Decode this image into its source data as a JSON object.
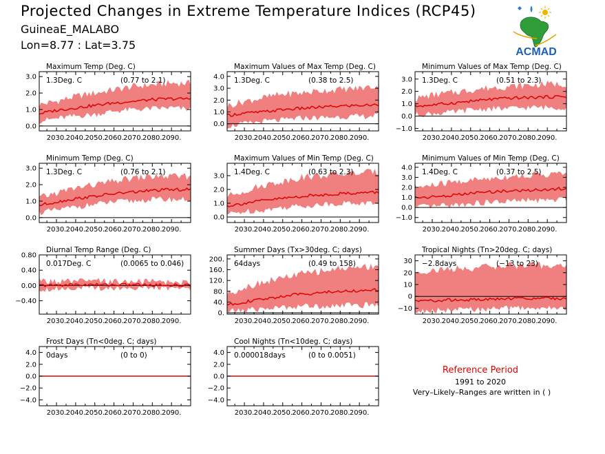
{
  "header": {
    "title": "Projected Changes in Extreme Temperature Indices (RCP45)",
    "location": "GuineaE_MALABO",
    "coordinates": "Lon=8.77 : Lat=3.75"
  },
  "logo": {
    "text": "ACMAD",
    "icon": "africa-map-icon"
  },
  "reference": {
    "title": "Reference Period",
    "years": "1991 to 2020",
    "note": "Very–Likely–Ranges are written in ( )"
  },
  "colors": {
    "band": "#f08080",
    "line": "#e00000",
    "zero": "#000000"
  },
  "chart_data": [
    {
      "type": "area",
      "title": "Maximum Temp (Deg. C)",
      "change": "1.3Deg. C",
      "range": "(0.77 to 2.1)",
      "x_ticks": [
        "2030.",
        "2040.",
        "2050.",
        "2060.",
        "2070.",
        "2080.",
        "2090."
      ],
      "y_ticks": [
        "0.0",
        "1.0",
        "2.0",
        "3.0"
      ],
      "xlim": [
        2021,
        2100
      ],
      "ylim": [
        -0.3,
        3.3
      ],
      "series": [
        {
          "x": [
            2021,
            2030,
            2040,
            2050,
            2060,
            2070,
            2080,
            2090,
            2100
          ],
          "values": [
            0.75,
            0.95,
            1.1,
            1.25,
            1.4,
            1.5,
            1.6,
            1.65,
            1.65
          ],
          "lower": [
            0.3,
            0.45,
            0.6,
            0.7,
            0.9,
            1.0,
            1.05,
            1.1,
            1.0
          ],
          "upper": [
            1.3,
            1.5,
            1.8,
            2.0,
            2.2,
            2.4,
            2.5,
            2.6,
            2.6
          ]
        }
      ]
    },
    {
      "type": "area",
      "title": "Maximum Values of Max Temp (Deg. C)",
      "change": "1.3Deg. C",
      "range": "(0.38 to 2.5)",
      "x_ticks": [
        "2030.",
        "2040.",
        "2050.",
        "2060.",
        "2070.",
        "2080.",
        "2090."
      ],
      "y_ticks": [
        "0.0",
        "1.0",
        "2.0",
        "3.0",
        "4.0"
      ],
      "xlim": [
        2021,
        2100
      ],
      "ylim": [
        -0.6,
        4.4
      ],
      "series": [
        {
          "x": [
            2021,
            2030,
            2040,
            2050,
            2060,
            2070,
            2080,
            2090,
            2100
          ],
          "values": [
            0.7,
            0.9,
            1.0,
            1.2,
            1.3,
            1.4,
            1.5,
            1.55,
            1.6
          ],
          "lower": [
            -0.2,
            0.0,
            0.2,
            0.3,
            0.5,
            0.5,
            0.6,
            0.6,
            0.7
          ],
          "upper": [
            1.5,
            1.9,
            2.2,
            2.5,
            2.6,
            2.8,
            2.9,
            3.0,
            3.2
          ]
        }
      ]
    },
    {
      "type": "area",
      "title": "Minimum Values of Max Temp (Deg. C)",
      "change": "1.3Deg. C",
      "range": "(0.51 to 2.3)",
      "x_ticks": [
        "2030.",
        "2040.",
        "2050.",
        "2060.",
        "2070.",
        "2080.",
        "2090."
      ],
      "y_ticks": [
        "−1.0",
        "0.0",
        "1.0",
        "2.0",
        "3.0"
      ],
      "xlim": [
        2021,
        2100
      ],
      "ylim": [
        -1.2,
        3.6
      ],
      "series": [
        {
          "x": [
            2021,
            2030,
            2040,
            2050,
            2060,
            2070,
            2080,
            2090,
            2100
          ],
          "values": [
            0.8,
            0.9,
            1.05,
            1.2,
            1.35,
            1.45,
            1.5,
            1.55,
            1.6
          ],
          "lower": [
            0.1,
            0.2,
            0.3,
            0.5,
            0.6,
            0.6,
            0.7,
            0.7,
            0.7
          ],
          "upper": [
            1.4,
            1.7,
            1.9,
            2.1,
            2.3,
            2.4,
            2.5,
            2.6,
            2.6
          ]
        }
      ]
    },
    {
      "type": "area",
      "title": "Minimum Temp (Deg. C)",
      "change": "1.3Deg. C",
      "range": "(0.76 to 2.1)",
      "x_ticks": [
        "2030.",
        "2040.",
        "2050.",
        "2060.",
        "2070.",
        "2080.",
        "2090."
      ],
      "y_ticks": [
        "0.0",
        "1.0",
        "2.0",
        "3.0"
      ],
      "xlim": [
        2021,
        2100
      ],
      "ylim": [
        -0.3,
        3.3
      ],
      "series": [
        {
          "x": [
            2021,
            2030,
            2040,
            2050,
            2060,
            2070,
            2080,
            2090,
            2100
          ],
          "values": [
            0.75,
            0.95,
            1.15,
            1.3,
            1.45,
            1.55,
            1.65,
            1.7,
            1.7
          ],
          "lower": [
            0.3,
            0.45,
            0.65,
            0.8,
            0.95,
            1.0,
            1.1,
            1.1,
            1.1
          ],
          "upper": [
            1.2,
            1.5,
            1.8,
            2.0,
            2.2,
            2.4,
            2.5,
            2.5,
            2.5
          ]
        }
      ]
    },
    {
      "type": "area",
      "title": "Maximum Values of Min Temp (Deg. C)",
      "change": "1.4Deg. C",
      "range": "(0.63 to 2.3)",
      "x_ticks": [
        "2030.",
        "2040.",
        "2050.",
        "2060.",
        "2070.",
        "2080.",
        "2090."
      ],
      "y_ticks": [
        "0.0",
        "1.0",
        "2.0",
        "3.0"
      ],
      "xlim": [
        2021,
        2100
      ],
      "ylim": [
        -0.4,
        3.9
      ],
      "series": [
        {
          "x": [
            2021,
            2030,
            2040,
            2050,
            2060,
            2070,
            2080,
            2090,
            2100
          ],
          "values": [
            0.8,
            1.0,
            1.2,
            1.35,
            1.5,
            1.6,
            1.7,
            1.75,
            1.8
          ],
          "lower": [
            0.2,
            0.4,
            0.5,
            0.7,
            0.8,
            0.9,
            1.0,
            1.0,
            1.0
          ],
          "upper": [
            1.5,
            1.9,
            2.3,
            2.6,
            2.9,
            3.0,
            3.1,
            3.2,
            3.3
          ]
        }
      ]
    },
    {
      "type": "area",
      "title": "Minimum Values of Min Temp (Deg. C)",
      "change": "1.4Deg. C",
      "range": "(0.37 to 2.5)",
      "x_ticks": [
        "2030.",
        "2040.",
        "2050.",
        "2060.",
        "2070.",
        "2080.",
        "2090."
      ],
      "y_ticks": [
        "−1.0",
        "0.0",
        "1.0",
        "2.0",
        "3.0",
        "4.0"
      ],
      "xlim": [
        2021,
        2100
      ],
      "ylim": [
        -1.5,
        4.4
      ],
      "series": [
        {
          "x": [
            2021,
            2030,
            2040,
            2050,
            2060,
            2070,
            2080,
            2090,
            2100
          ],
          "values": [
            1.0,
            1.05,
            1.2,
            1.4,
            1.55,
            1.65,
            1.7,
            1.8,
            1.9
          ],
          "lower": [
            0.0,
            0.1,
            0.2,
            0.4,
            0.5,
            0.6,
            0.7,
            0.7,
            0.8
          ],
          "upper": [
            2.0,
            2.2,
            2.5,
            2.7,
            2.9,
            3.1,
            3.2,
            3.3,
            3.4
          ]
        }
      ]
    },
    {
      "type": "area",
      "title": "Diurnal Temp Range (Deg. C)",
      "change": "0.017Deg. C",
      "range": "(0.0065 to 0.046)",
      "x_ticks": [
        "2030.",
        "2040.",
        "2050.",
        "2060.",
        "2070.",
        "2080.",
        "2090."
      ],
      "y_ticks": [
        "−0.40",
        "0.00",
        "0.40",
        "0.80"
      ],
      "xlim": [
        2021,
        2100
      ],
      "ylim": [
        -0.75,
        0.8
      ],
      "series": [
        {
          "x": [
            2021,
            2030,
            2040,
            2050,
            2060,
            2070,
            2080,
            2090,
            2100
          ],
          "values": [
            0.0,
            0.01,
            0.02,
            0.02,
            0.02,
            0.02,
            0.01,
            0.01,
            0.0
          ],
          "lower": [
            -0.1,
            -0.08,
            -0.06,
            -0.07,
            -0.06,
            -0.06,
            -0.07,
            -0.06,
            -0.08
          ],
          "upper": [
            0.12,
            0.1,
            0.1,
            0.11,
            0.1,
            0.1,
            0.1,
            0.09,
            0.08
          ]
        }
      ]
    },
    {
      "type": "area",
      "title": "Summer Days (Tx>30deg. C; days)",
      "change": "64days",
      "range": "(0.49 to 158)",
      "x_ticks": [
        "2030.",
        "2040.",
        "2050.",
        "2060.",
        "2070.",
        "2080.",
        "2090."
      ],
      "y_ticks": [
        "0.",
        "40.",
        "80.",
        "120.",
        "160.",
        "200."
      ],
      "xlim": [
        2021,
        2100
      ],
      "ylim": [
        -5,
        215
      ],
      "series": [
        {
          "x": [
            2021,
            2030,
            2040,
            2050,
            2060,
            2070,
            2080,
            2090,
            2100
          ],
          "values": [
            30,
            40,
            50,
            62,
            70,
            75,
            80,
            82,
            85
          ],
          "lower": [
            5,
            10,
            15,
            20,
            25,
            25,
            28,
            28,
            30
          ],
          "upper": [
            70,
            95,
            115,
            130,
            145,
            155,
            165,
            170,
            175
          ]
        }
      ]
    },
    {
      "type": "area",
      "title": "Tropical Nights (Tn>20deg. C; days)",
      "change": "−2.8days",
      "range": "(−13 to 23)",
      "x_ticks": [
        "2030.",
        "2040.",
        "2050.",
        "2060.",
        "2070.",
        "2080.",
        "2090."
      ],
      "y_ticks": [
        "−10",
        "0",
        "10",
        "20",
        "30"
      ],
      "xlim": [
        2021,
        2100
      ],
      "ylim": [
        -15,
        35
      ],
      "series": [
        {
          "x": [
            2021,
            2030,
            2040,
            2050,
            2060,
            2070,
            2080,
            2090,
            2100
          ],
          "values": [
            -4,
            -3.5,
            -3,
            -3,
            -2.5,
            -2,
            -1.5,
            -1.5,
            -2
          ],
          "lower": [
            -13,
            -12,
            -12,
            -11,
            -11,
            -10,
            -10,
            -10,
            -10
          ],
          "upper": [
            20,
            22,
            23,
            24,
            25,
            26,
            26,
            26,
            26
          ]
        }
      ]
    },
    {
      "type": "area",
      "title": "Frost Days (Tn<0deg. C; days)",
      "change": "0days",
      "range": "(0 to 0)",
      "x_ticks": [
        "2030.",
        "2040.",
        "2050.",
        "2060.",
        "2070.",
        "2080.",
        "2090."
      ],
      "y_ticks": [
        "−4.0",
        "−2.0",
        "0.0",
        "2.0",
        "4.0"
      ],
      "xlim": [
        2021,
        2100
      ],
      "ylim": [
        -5,
        5
      ],
      "series": [
        {
          "x": [
            2021,
            2100
          ],
          "values": [
            0,
            0
          ],
          "lower": [
            0,
            0
          ],
          "upper": [
            0,
            0
          ]
        }
      ]
    },
    {
      "type": "area",
      "title": "Cool Nights (Tn<10deg. C; days)",
      "change": "0.000018days",
      "range": "(0 to 0.0051)",
      "x_ticks": [
        "2030.",
        "2040.",
        "2050.",
        "2060.",
        "2070.",
        "2080.",
        "2090."
      ],
      "y_ticks": [
        "−4.0",
        "−2.0",
        "0.0",
        "2.0",
        "4.0"
      ],
      "xlim": [
        2021,
        2100
      ],
      "ylim": [
        -5,
        5
      ],
      "series": [
        {
          "x": [
            2021,
            2100
          ],
          "values": [
            0,
            0
          ],
          "lower": [
            0,
            0
          ],
          "upper": [
            0,
            0
          ]
        }
      ]
    }
  ]
}
